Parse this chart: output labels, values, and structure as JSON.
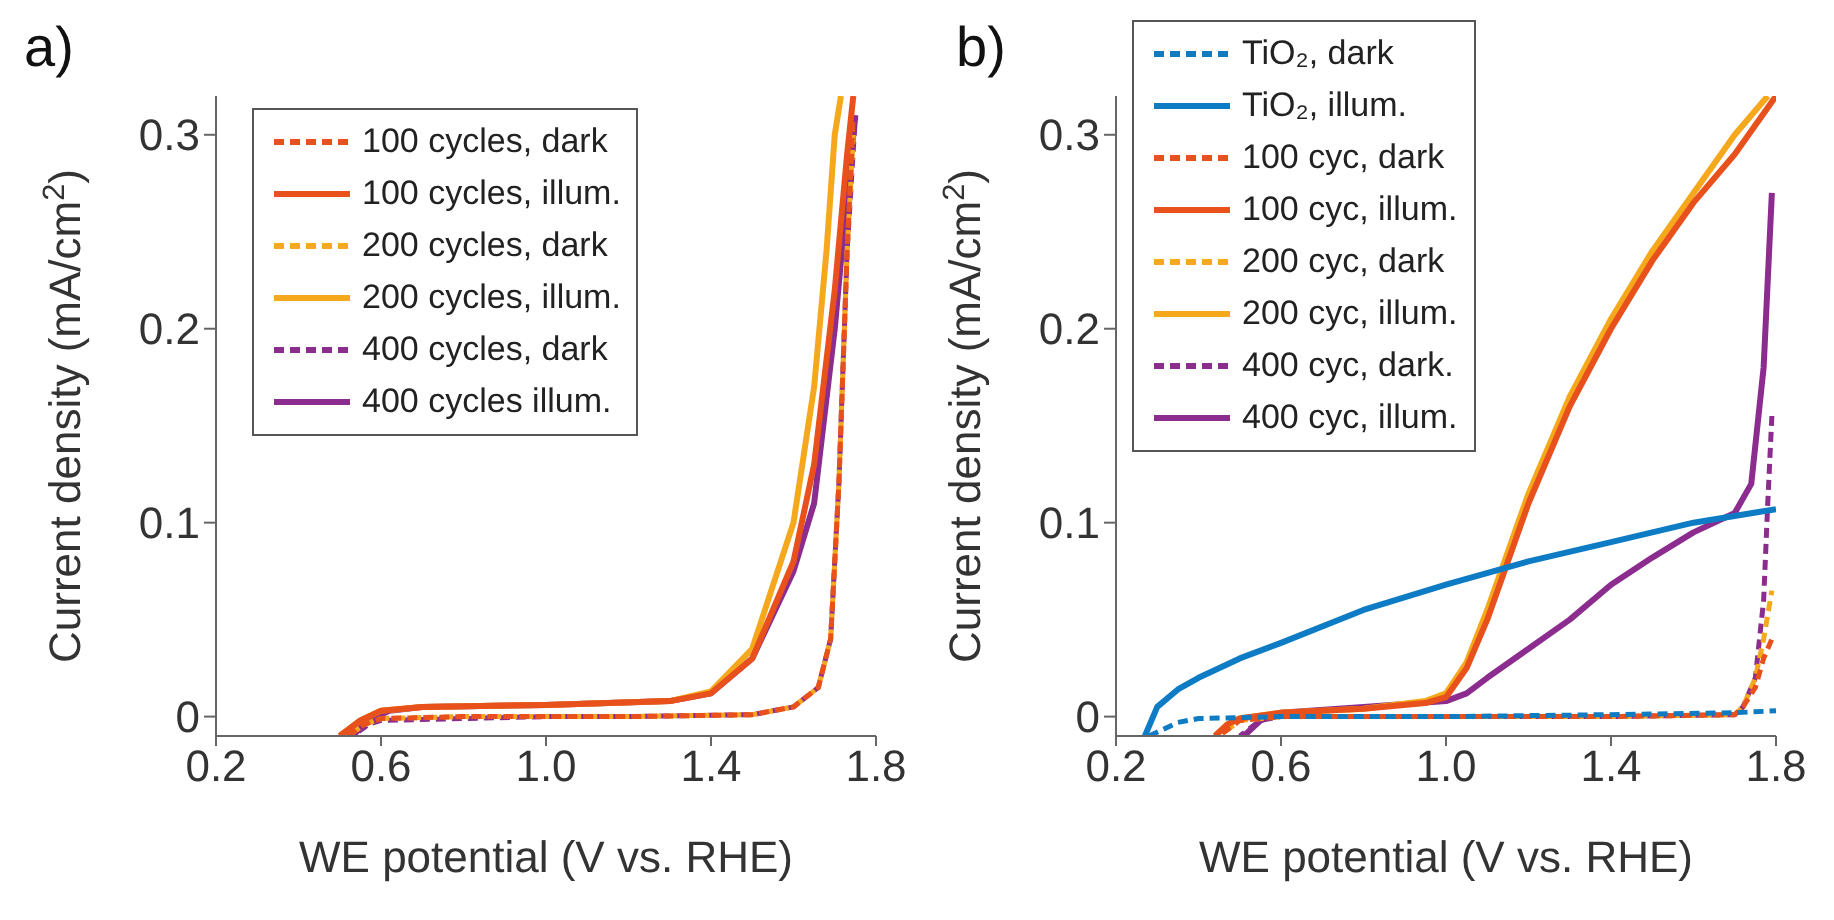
{
  "chart_data": [
    {
      "type": "line",
      "title": "a)",
      "xlabel": "WE potential (V vs. RHE)",
      "ylabel": "Current density (mA/cm$^{2}$)",
      "xlim": [
        0.2,
        1.8
      ],
      "ylim": [
        -0.01,
        0.32
      ],
      "xticks": [
        0.2,
        0.6,
        {
          "value": 1,
          "label": "1.0"
        },
        1.4,
        1.8
      ],
      "yticks": [
        0,
        0.1,
        0.2,
        0.3
      ],
      "grid": false,
      "legend": "top left",
      "marker": "none",
      "series": [
        {
          "name": "100 cycles, dark",
          "color": "#e8501c",
          "line_style": "dashed",
          "x": [
            0.52,
            0.56,
            0.6,
            0.8,
            1.0,
            1.2,
            1.5,
            1.6,
            1.66,
            1.69,
            1.71,
            1.73,
            1.745
          ],
          "values": [
            -0.01,
            -0.004,
            -0.001,
            0,
            0,
            0,
            0.001,
            0.005,
            0.015,
            0.04,
            0.12,
            0.24,
            0.31
          ]
        },
        {
          "name": "100 cycles, illum.",
          "color": "#e8501c",
          "line_style": "solid",
          "x": [
            0.5,
            0.55,
            0.6,
            0.7,
            1.0,
            1.3,
            1.4,
            1.5,
            1.6,
            1.65,
            1.7,
            1.73,
            1.745
          ],
          "values": [
            -0.01,
            -0.002,
            0.003,
            0.005,
            0.006,
            0.008,
            0.012,
            0.03,
            0.08,
            0.13,
            0.22,
            0.29,
            0.32
          ]
        },
        {
          "name": "200 cycles, dark",
          "color": "#f5a81c",
          "line_style": "dashed",
          "x": [
            0.52,
            0.56,
            0.6,
            0.8,
            1.0,
            1.2,
            1.5,
            1.6,
            1.66,
            1.69,
            1.71,
            1.73,
            1.745
          ],
          "values": [
            -0.01,
            -0.004,
            -0.001,
            0,
            0,
            0,
            0.001,
            0.005,
            0.015,
            0.04,
            0.12,
            0.24,
            0.3
          ]
        },
        {
          "name": "200 cycles, illum.",
          "color": "#f5a81c",
          "line_style": "solid",
          "x": [
            0.5,
            0.55,
            0.6,
            0.7,
            1.0,
            1.3,
            1.4,
            1.5,
            1.6,
            1.65,
            1.68,
            1.7,
            1.715
          ],
          "values": [
            -0.01,
            -0.002,
            0.003,
            0.005,
            0.006,
            0.008,
            0.013,
            0.035,
            0.1,
            0.17,
            0.24,
            0.3,
            0.32
          ]
        },
        {
          "name": "400 cycles, dark",
          "color": "#8b2c8e",
          "line_style": "dashed",
          "x": [
            0.53,
            0.57,
            0.6,
            0.8,
            1.0,
            1.2,
            1.5,
            1.6,
            1.66,
            1.69,
            1.71,
            1.73,
            1.75
          ],
          "values": [
            -0.01,
            -0.004,
            -0.002,
            -0.001,
            0,
            0,
            0.001,
            0.005,
            0.015,
            0.04,
            0.12,
            0.24,
            0.31
          ]
        },
        {
          "name": "400 cycles illum.",
          "color": "#8b2c8e",
          "line_style": "solid",
          "x": [
            0.53,
            0.57,
            0.62,
            0.7,
            1.0,
            1.3,
            1.4,
            1.5,
            1.6,
            1.65,
            1.7,
            1.73,
            1.75
          ],
          "values": [
            -0.01,
            -0.002,
            0.003,
            0.005,
            0.006,
            0.008,
            0.012,
            0.03,
            0.075,
            0.11,
            0.2,
            0.27,
            0.31
          ]
        }
      ]
    },
    {
      "type": "line",
      "title": "b)",
      "xlabel": "WE potential (V vs. RHE)",
      "ylabel": "Current density (mA/cm$^{2}$)",
      "xlim": [
        0.2,
        1.8
      ],
      "ylim": [
        -0.01,
        0.32
      ],
      "xticks": [
        0.2,
        0.6,
        {
          "value": 1,
          "label": "1.0"
        },
        1.4,
        1.8
      ],
      "yticks": [
        0,
        0.1,
        0.2,
        0.3
      ],
      "grid": false,
      "legend": "top left",
      "marker": "none",
      "series": [
        {
          "name": "TiO₂, dark",
          "color": "#0e7cc4",
          "line_style": "dashed",
          "x": [
            0.28,
            0.35,
            0.4,
            0.6,
            1.0,
            1.4,
            1.7,
            1.8
          ],
          "values": [
            -0.01,
            -0.003,
            -0.001,
            0,
            0,
            0.001,
            0.002,
            0.003
          ]
        },
        {
          "name": "TiO₂, illum.",
          "color": "#0e7cc4",
          "line_style": "solid",
          "x": [
            0.27,
            0.3,
            0.35,
            0.4,
            0.5,
            0.6,
            0.8,
            1.0,
            1.2,
            1.4,
            1.6,
            1.8
          ],
          "values": [
            -0.01,
            0.005,
            0.014,
            0.02,
            0.03,
            0.038,
            0.055,
            0.068,
            0.08,
            0.09,
            0.1,
            0.107
          ]
        },
        {
          "name": "100 cyc, dark",
          "color": "#e8501c",
          "line_style": "dashed",
          "x": [
            0.45,
            0.5,
            0.6,
            1.0,
            1.4,
            1.7,
            1.72,
            1.75,
            1.77,
            1.79
          ],
          "values": [
            -0.01,
            -0.002,
            0,
            0,
            0,
            0.001,
            0.005,
            0.015,
            0.03,
            0.04
          ]
        },
        {
          "name": "100 cyc, illum.",
          "color": "#e8501c",
          "line_style": "solid",
          "x": [
            0.44,
            0.47,
            0.5,
            0.6,
            0.8,
            0.95,
            1.0,
            1.05,
            1.1,
            1.15,
            1.2,
            1.3,
            1.4,
            1.5,
            1.6,
            1.7,
            1.8
          ],
          "values": [
            -0.01,
            -0.004,
            -0.001,
            0.002,
            0.004,
            0.007,
            0.01,
            0.025,
            0.05,
            0.08,
            0.11,
            0.16,
            0.2,
            0.235,
            0.265,
            0.29,
            0.32
          ]
        },
        {
          "name": "200 cyc, dark",
          "color": "#f5a81c",
          "line_style": "dashed",
          "x": [
            0.45,
            0.5,
            0.6,
            1.0,
            1.4,
            1.7,
            1.72,
            1.75,
            1.77,
            1.79
          ],
          "values": [
            -0.01,
            -0.002,
            0,
            0,
            0,
            0.001,
            0.005,
            0.02,
            0.04,
            0.065
          ]
        },
        {
          "name": "200 cyc, illum.",
          "color": "#f5a81c",
          "line_style": "solid",
          "x": [
            0.44,
            0.47,
            0.5,
            0.6,
            0.8,
            0.95,
            1.0,
            1.05,
            1.1,
            1.15,
            1.2,
            1.3,
            1.4,
            1.5,
            1.6,
            1.7,
            1.78
          ],
          "values": [
            -0.01,
            -0.004,
            -0.001,
            0.002,
            0.004,
            0.008,
            0.012,
            0.028,
            0.055,
            0.085,
            0.115,
            0.165,
            0.205,
            0.24,
            0.27,
            0.3,
            0.32
          ]
        },
        {
          "name": "400 cyc, dark.",
          "color": "#8b2c8e",
          "line_style": "dashed",
          "x": [
            0.5,
            0.55,
            0.6,
            1.0,
            1.4,
            1.7,
            1.72,
            1.75,
            1.77,
            1.78,
            1.79
          ],
          "values": [
            -0.01,
            -0.002,
            0,
            0,
            0,
            0.001,
            0.005,
            0.02,
            0.06,
            0.11,
            0.155
          ]
        },
        {
          "name": "400 cyc, illum.",
          "color": "#8b2c8e",
          "line_style": "solid",
          "x": [
            0.51,
            0.55,
            0.6,
            0.8,
            1.0,
            1.05,
            1.1,
            1.2,
            1.3,
            1.4,
            1.5,
            1.6,
            1.7,
            1.74,
            1.77,
            1.79
          ],
          "values": [
            -0.01,
            -0.002,
            0.002,
            0.005,
            0.008,
            0.012,
            0.02,
            0.035,
            0.05,
            0.068,
            0.082,
            0.095,
            0.105,
            0.12,
            0.18,
            0.27
          ]
        }
      ]
    }
  ]
}
